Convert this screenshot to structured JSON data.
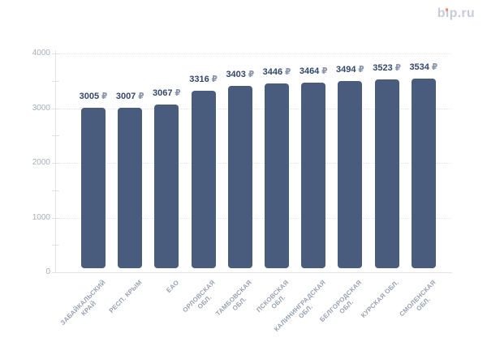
{
  "header": {
    "logo_text": "bip.ru",
    "logo_color": "#C7CCD8",
    "logo_dot_color": "#F2876C"
  },
  "chart_data": {
    "type": "bar",
    "title": "",
    "categories": [
      "ЗАБАЙКАЛЬСКИЙ\nКРАЙ",
      "РЕСП. КРЫМ",
      "ЕАО",
      "ОРЛОВСКАЯ\nОБЛ.",
      "ТАМБОВСКАЯ\nОБЛ.",
      "ПСКОВСКАЯ\nОБЛ.",
      "КАЛИНИНГРАДСКАЯ\nОБЛ.",
      "БЕЛГОРОДСКАЯ\nОБЛ.",
      "КУРСКАЯ ОБЛ.",
      "СМОЛЕНСКАЯ\nОБЛ."
    ],
    "values": [
      3005,
      3007,
      3067,
      3316,
      3403,
      3446,
      3464,
      3494,
      3523,
      3534
    ],
    "value_label_suffix": "₽",
    "value_labels": [
      "3005 ₽",
      "3007 ₽",
      "3067 ₽",
      "3316 ₽",
      "3403 ₽",
      "3446 ₽",
      "3464 ₽",
      "3494 ₽",
      "3523 ₽",
      "3534 ₽"
    ],
    "xlabel": "",
    "ylabel": "",
    "ylim": [
      0,
      4000
    ],
    "y_ticks": [
      0,
      1000,
      2000,
      3000,
      4000
    ],
    "y_minor_ticks": [
      500,
      1500,
      2500,
      3500
    ],
    "grid": true,
    "legend": "none",
    "bar_color": "#4A5C7D",
    "value_color": "#33466B",
    "currency_color": "#8A94A9",
    "axis_tick_color": "#A7AEBB",
    "category_color": "#9AA2B2"
  }
}
